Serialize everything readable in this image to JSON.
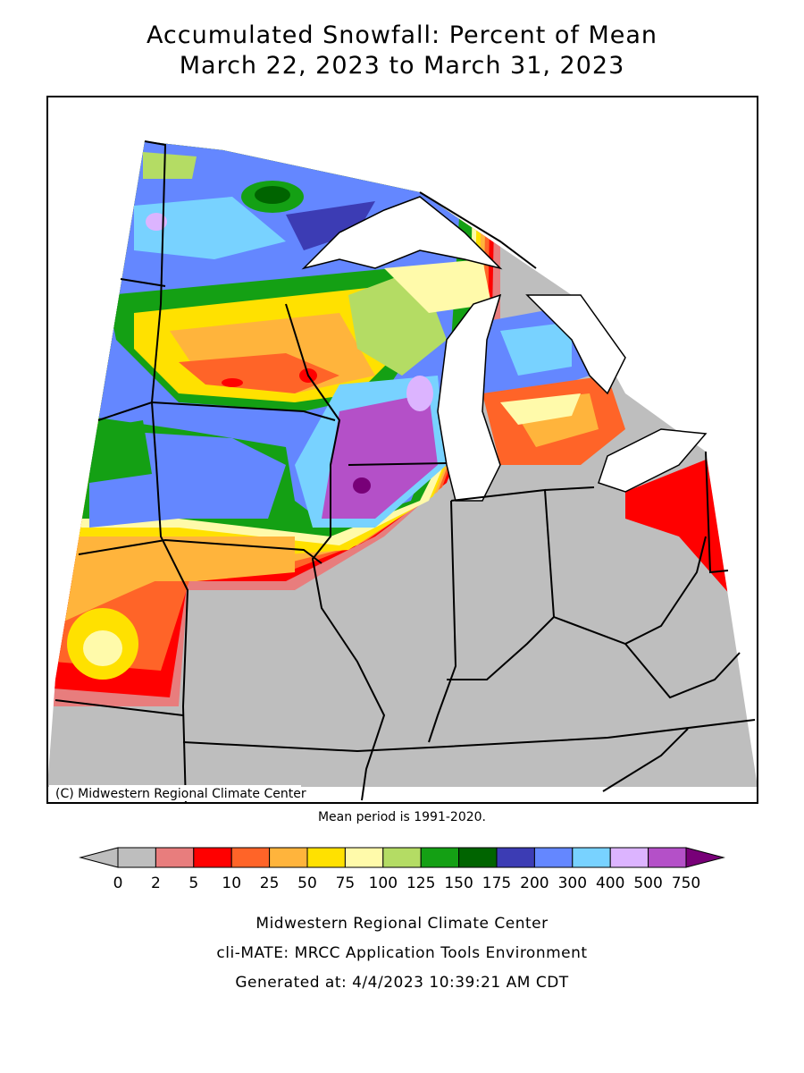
{
  "title": {
    "line1": "Accumulated Snowfall: Percent of Mean",
    "line2": "March 22, 2023 to March 31, 2023"
  },
  "map": {
    "copyright": "(C) Midwestern Regional Climate Center",
    "note": "Mean period is 1991-2020."
  },
  "legend": {
    "labels": [
      "0",
      "2",
      "5",
      "10",
      "25",
      "50",
      "75",
      "100",
      "125",
      "150",
      "175",
      "200",
      "300",
      "400",
      "500",
      "750"
    ],
    "colors": [
      "#bebebe",
      "#bebebe",
      "#e87d7d",
      "#ff0000",
      "#ff6428",
      "#ffb43c",
      "#ffe100",
      "#fffaaa",
      "#b4dc64",
      "#14a014",
      "#006400",
      "#3c3cb4",
      "#6487ff",
      "#78d2ff",
      "#dcb4ff",
      "#b450c8",
      "#780078"
    ]
  },
  "footer": [
    "Midwestern Regional Climate Center",
    "cli-MATE: MRCC Application Tools Environment",
    "Generated at: 4/4/2023 10:39:21 AM CDT"
  ]
}
